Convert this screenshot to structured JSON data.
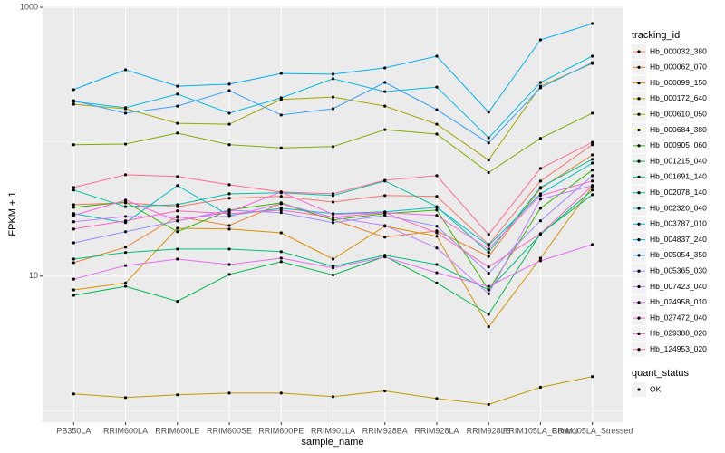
{
  "chart_data": {
    "type": "line",
    "x_label": "sample_name",
    "y_label": "FPKM + 1",
    "log_scale": true,
    "grid": true,
    "ylim": [
      0.82,
      1016
    ],
    "yticks": [
      10,
      1000
    ],
    "y_minor_ticks": [
      1,
      100
    ],
    "legend_title": "tracking_id",
    "point_legend_title": "quant_status",
    "point_legend_entries": [
      "OK"
    ],
    "point_color": "#000000",
    "categories": [
      "PB350LA",
      "RRIM600LA",
      "RRIM600LE",
      "RRIM600SE",
      "RRIM600PE",
      "RRIM901LA",
      "RRIM928BA",
      "RRIM928LA",
      "RRIM928LE",
      "RRIM105LA_Control",
      "RRIM105LA_Stressed"
    ],
    "series": [
      {
        "name": "Hb_000032_380",
        "color": "#F8766D",
        "values": [
          34.0,
          35.1,
          32.9,
          38.0,
          39.2,
          35.6,
          39.8,
          39.2,
          17.2,
          51.0,
          95.0
        ]
      },
      {
        "name": "Hb_000062_070",
        "color": "#EA8331",
        "values": [
          12.6,
          16.4,
          27.8,
          23.8,
          34.6,
          26.2,
          19.5,
          21.7,
          14.0,
          45.0,
          79.8
        ]
      },
      {
        "name": "Hb_000099_150",
        "color": "#D89000",
        "values": [
          7.9,
          8.9,
          22.7,
          22.4,
          21.0,
          13.4,
          23.5,
          19.8,
          4.2,
          13.6,
          46.4
        ]
      },
      {
        "name": "Hb_000172_640",
        "color": "#C09B00",
        "values": [
          1.33,
          1.25,
          1.31,
          1.35,
          1.35,
          1.27,
          1.4,
          1.23,
          1.11,
          1.49,
          1.79
        ]
      },
      {
        "name": "Hb_000610_050",
        "color": "#A3A500",
        "values": [
          190,
          176,
          137,
          135,
          206,
          215,
          184,
          135,
          73,
          259,
          382
        ]
      },
      {
        "name": "Hb_000684_380",
        "color": "#7CAE00",
        "values": [
          95,
          96,
          116,
          95,
          90,
          92,
          123,
          114,
          59,
          106,
          163
        ]
      },
      {
        "name": "Hb_000905_060",
        "color": "#39B600",
        "values": [
          32.5,
          35.6,
          21.4,
          31.0,
          35.1,
          26.2,
          29.2,
          31.0,
          7.9,
          32.0,
          61.5
        ]
      },
      {
        "name": "Hb_001215_040",
        "color": "#00BB4E",
        "values": [
          7.2,
          8.4,
          6.5,
          10.3,
          12.8,
          10.2,
          14.0,
          8.9,
          5.2,
          20.7,
          40.4
        ]
      },
      {
        "name": "Hb_001691_140",
        "color": "#00BF7D",
        "values": [
          13.4,
          15.0,
          15.9,
          15.9,
          15.2,
          11.8,
          14.3,
          12.2,
          7.9,
          20.4,
          43.7
        ]
      },
      {
        "name": "Hb_002078_140",
        "color": "#00C1A3",
        "values": [
          43.7,
          32.9,
          34.0,
          41.0,
          41.7,
          39.8,
          51.0,
          32.9,
          15.0,
          45.7,
          74.0
        ]
      },
      {
        "name": "Hb_002320_040",
        "color": "#00BFC4",
        "values": [
          29.2,
          25.0,
          47.2,
          28.3,
          32.0,
          29.2,
          30.1,
          32.5,
          16.9,
          41.0,
          69.4
        ]
      },
      {
        "name": "Hb_003787_010",
        "color": "#00BAE0",
        "values": [
          199,
          179,
          226,
          163,
          212,
          294,
          236,
          255,
          107,
          276,
          433
        ]
      },
      {
        "name": "Hb_004837_240",
        "color": "#00B0F6",
        "values": [
          244,
          343,
          259,
          268,
          322,
          318,
          354,
          433,
          166,
          572,
          757
        ]
      },
      {
        "name": "Hb_005054_350",
        "color": "#35A2FF",
        "values": [
          202,
          163,
          184,
          240,
          158,
          176,
          276,
          173,
          98,
          252,
          388
        ]
      },
      {
        "name": "Hb_005365_030",
        "color": "#9590FF",
        "values": [
          17.7,
          21.4,
          25.8,
          31.0,
          29.7,
          25.0,
          28.3,
          23.5,
          10.5,
          25.8,
          55.9
        ]
      },
      {
        "name": "Hb_007423_040",
        "color": "#C77CFF",
        "values": [
          25.4,
          27.8,
          27.4,
          27.8,
          34.6,
          27.4,
          23.8,
          16.2,
          7.4,
          37.4,
          47.2
        ]
      },
      {
        "name": "Hb_024958_010",
        "color": "#E76BF3",
        "values": [
          9.5,
          12.0,
          13.4,
          12.2,
          13.6,
          11.5,
          13.9,
          10.6,
          8.4,
          13.0,
          17.2
        ]
      },
      {
        "name": "Hb_027472_040",
        "color": "#FA62DB",
        "values": [
          28.3,
          36.8,
          25.8,
          30.1,
          42.3,
          28.8,
          29.7,
          28.3,
          15.9,
          39.8,
          51.0
        ]
      },
      {
        "name": "Hb_029388_020",
        "color": "#FF62BC",
        "values": [
          22.4,
          25.8,
          30.6,
          29.2,
          31.0,
          27.4,
          29.7,
          21.0,
          11.7,
          20.7,
          47.2
        ]
      },
      {
        "name": "Hb_124953_020",
        "color": "#FF6C91",
        "values": [
          45.7,
          56.8,
          55.1,
          47.9,
          42.3,
          41.0,
          51.7,
          55.9,
          20.4,
          63.3,
          99
        ]
      }
    ]
  }
}
